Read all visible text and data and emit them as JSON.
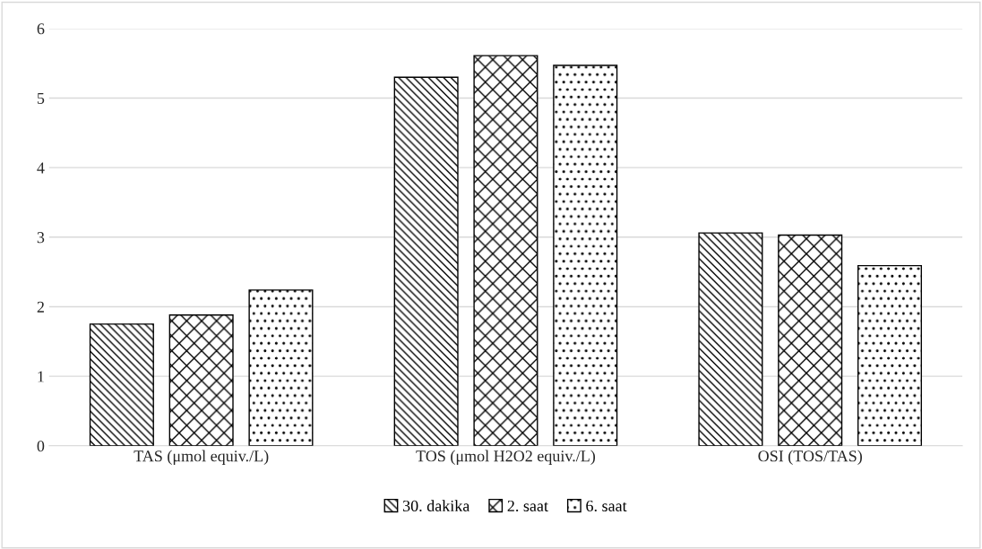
{
  "chart_data": {
    "type": "bar",
    "categories": [
      "TAS (μmol equiv./L)",
      "TOS (μmol H2O2 equiv./L)",
      "OSI (TOS/TAS)"
    ],
    "series": [
      {
        "name": "30. dakika",
        "color": "#000000",
        "values": [
          1.75,
          5.3,
          3.06
        ]
      },
      {
        "name": "2. saat",
        "color": "#000000",
        "values": [
          1.88,
          5.61,
          3.03
        ]
      },
      {
        "name": "6. saat",
        "color": "#000000",
        "values": [
          2.24,
          5.47,
          2.59
        ]
      }
    ],
    "ylim": [
      0,
      6
    ],
    "yticks": [
      0,
      1,
      2,
      3,
      4,
      5,
      6
    ],
    "grid": "y",
    "legend": "bottom"
  }
}
